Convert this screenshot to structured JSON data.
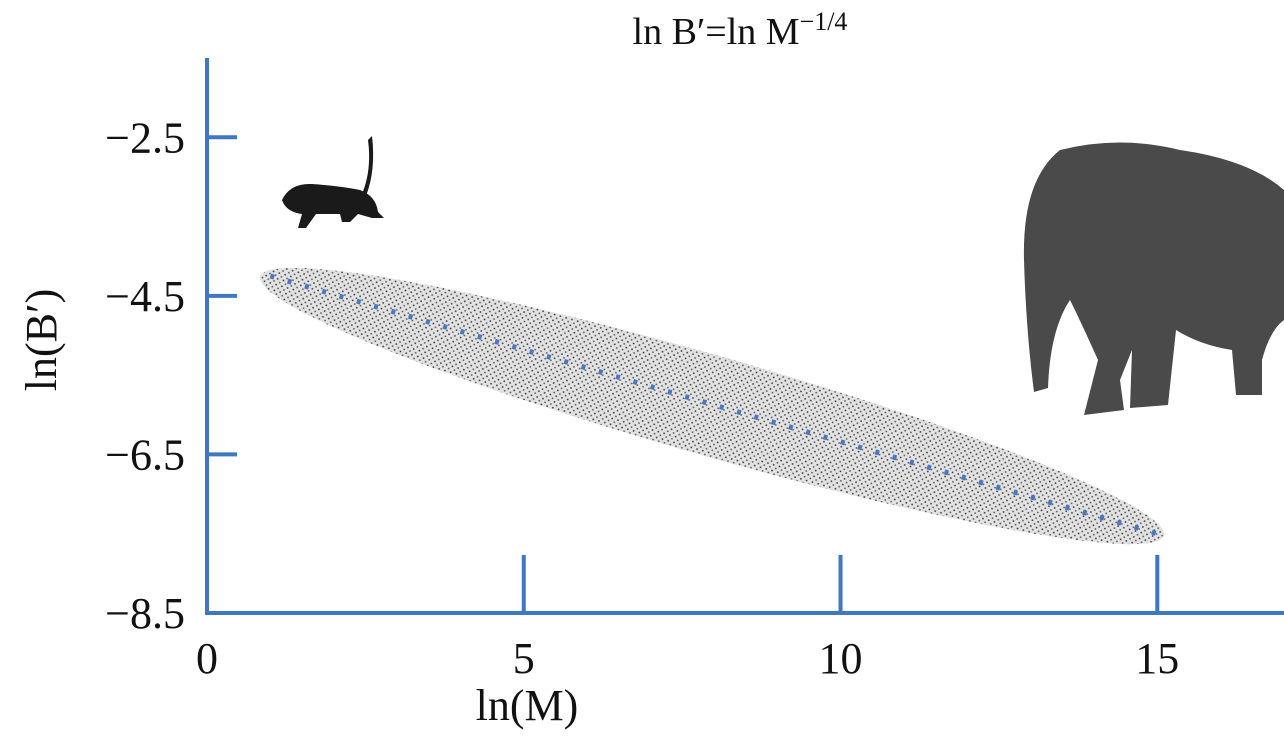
{
  "chart_data": {
    "type": "line",
    "title": "ln B′=ln M",
    "title_superscript": "−1/4",
    "x_label": "ln(M)",
    "y_label": "ln(B′)",
    "x": [
      1,
      15
    ],
    "values": [
      -4.25,
      -7.5
    ],
    "color": "#4a78c0",
    "axis_color": "#3f77c0",
    "xlim": [
      0,
      17
    ],
    "ylim": [
      -8.5,
      -1.5
    ],
    "xticks": [
      0,
      5,
      10,
      15
    ],
    "yticks": [
      {
        "value": -2.5,
        "label": "−2.5"
      },
      {
        "value": -4.5,
        "label": "−4.5"
      },
      {
        "value": -6.5,
        "label": "−6.5"
      },
      {
        "value": -8.5,
        "label": "−8.5"
      }
    ]
  }
}
